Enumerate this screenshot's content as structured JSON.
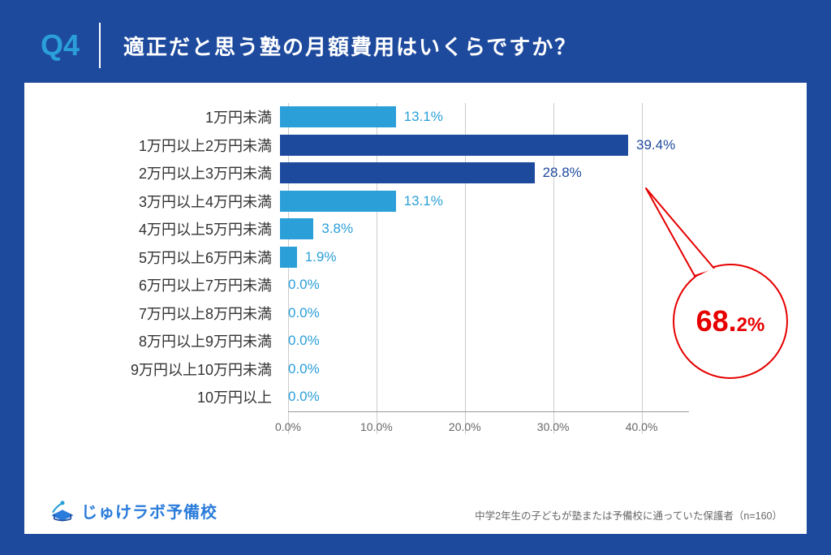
{
  "header": {
    "q_label": "Q4",
    "title": "適正だと思う塾の月額費用はいくらですか？"
  },
  "chart": {
    "type": "bar-horizontal",
    "x_max": 45,
    "x_ticks": [
      0.0,
      10.0,
      20.0,
      30.0,
      40.0
    ],
    "tick_suffix": "%",
    "grid_color": "#cccccc",
    "category_fontsize": 18,
    "value_fontsize": 17,
    "light_color": "#2a9fd8",
    "dark_color": "#1e4a9e",
    "label_light_color": "#2a9fd8",
    "label_dark_color": "#1e4a9e",
    "rows": [
      {
        "category": "1万円未満",
        "value": 13.1,
        "label": "13.1%",
        "highlight": false
      },
      {
        "category": "1万円以上2万円未満",
        "value": 39.4,
        "label": "39.4%",
        "highlight": true
      },
      {
        "category": "2万円以上3万円未満",
        "value": 28.8,
        "label": "28.8%",
        "highlight": true
      },
      {
        "category": "3万円以上4万円未満",
        "value": 13.1,
        "label": "13.1%",
        "highlight": false
      },
      {
        "category": "4万円以上5万円未満",
        "value": 3.8,
        "label": "3.8%",
        "highlight": false
      },
      {
        "category": "5万円以上6万円未満",
        "value": 1.9,
        "label": "1.9%",
        "highlight": false
      },
      {
        "category": "6万円以上7万円未満",
        "value": 0.0,
        "label": "0.0%",
        "highlight": false
      },
      {
        "category": "7万円以上8万円未満",
        "value": 0.0,
        "label": "0.0%",
        "highlight": false
      },
      {
        "category": "8万円以上9万円未満",
        "value": 0.0,
        "label": "0.0%",
        "highlight": false
      },
      {
        "category": "9万円以上10万円未満",
        "value": 0.0,
        "label": "0.0%",
        "highlight": false
      },
      {
        "category": "10万円以上",
        "value": 0.0,
        "label": "0.0%",
        "highlight": false
      }
    ]
  },
  "callout": {
    "big": "68.",
    "small": "2%",
    "color": "#e60000",
    "stroke_color": "#e60000"
  },
  "footer": {
    "logo_text": "じゅけラボ予備校",
    "note": "中学2年生の子どもが塾または予備校に通っていた保護者（n=160）"
  }
}
